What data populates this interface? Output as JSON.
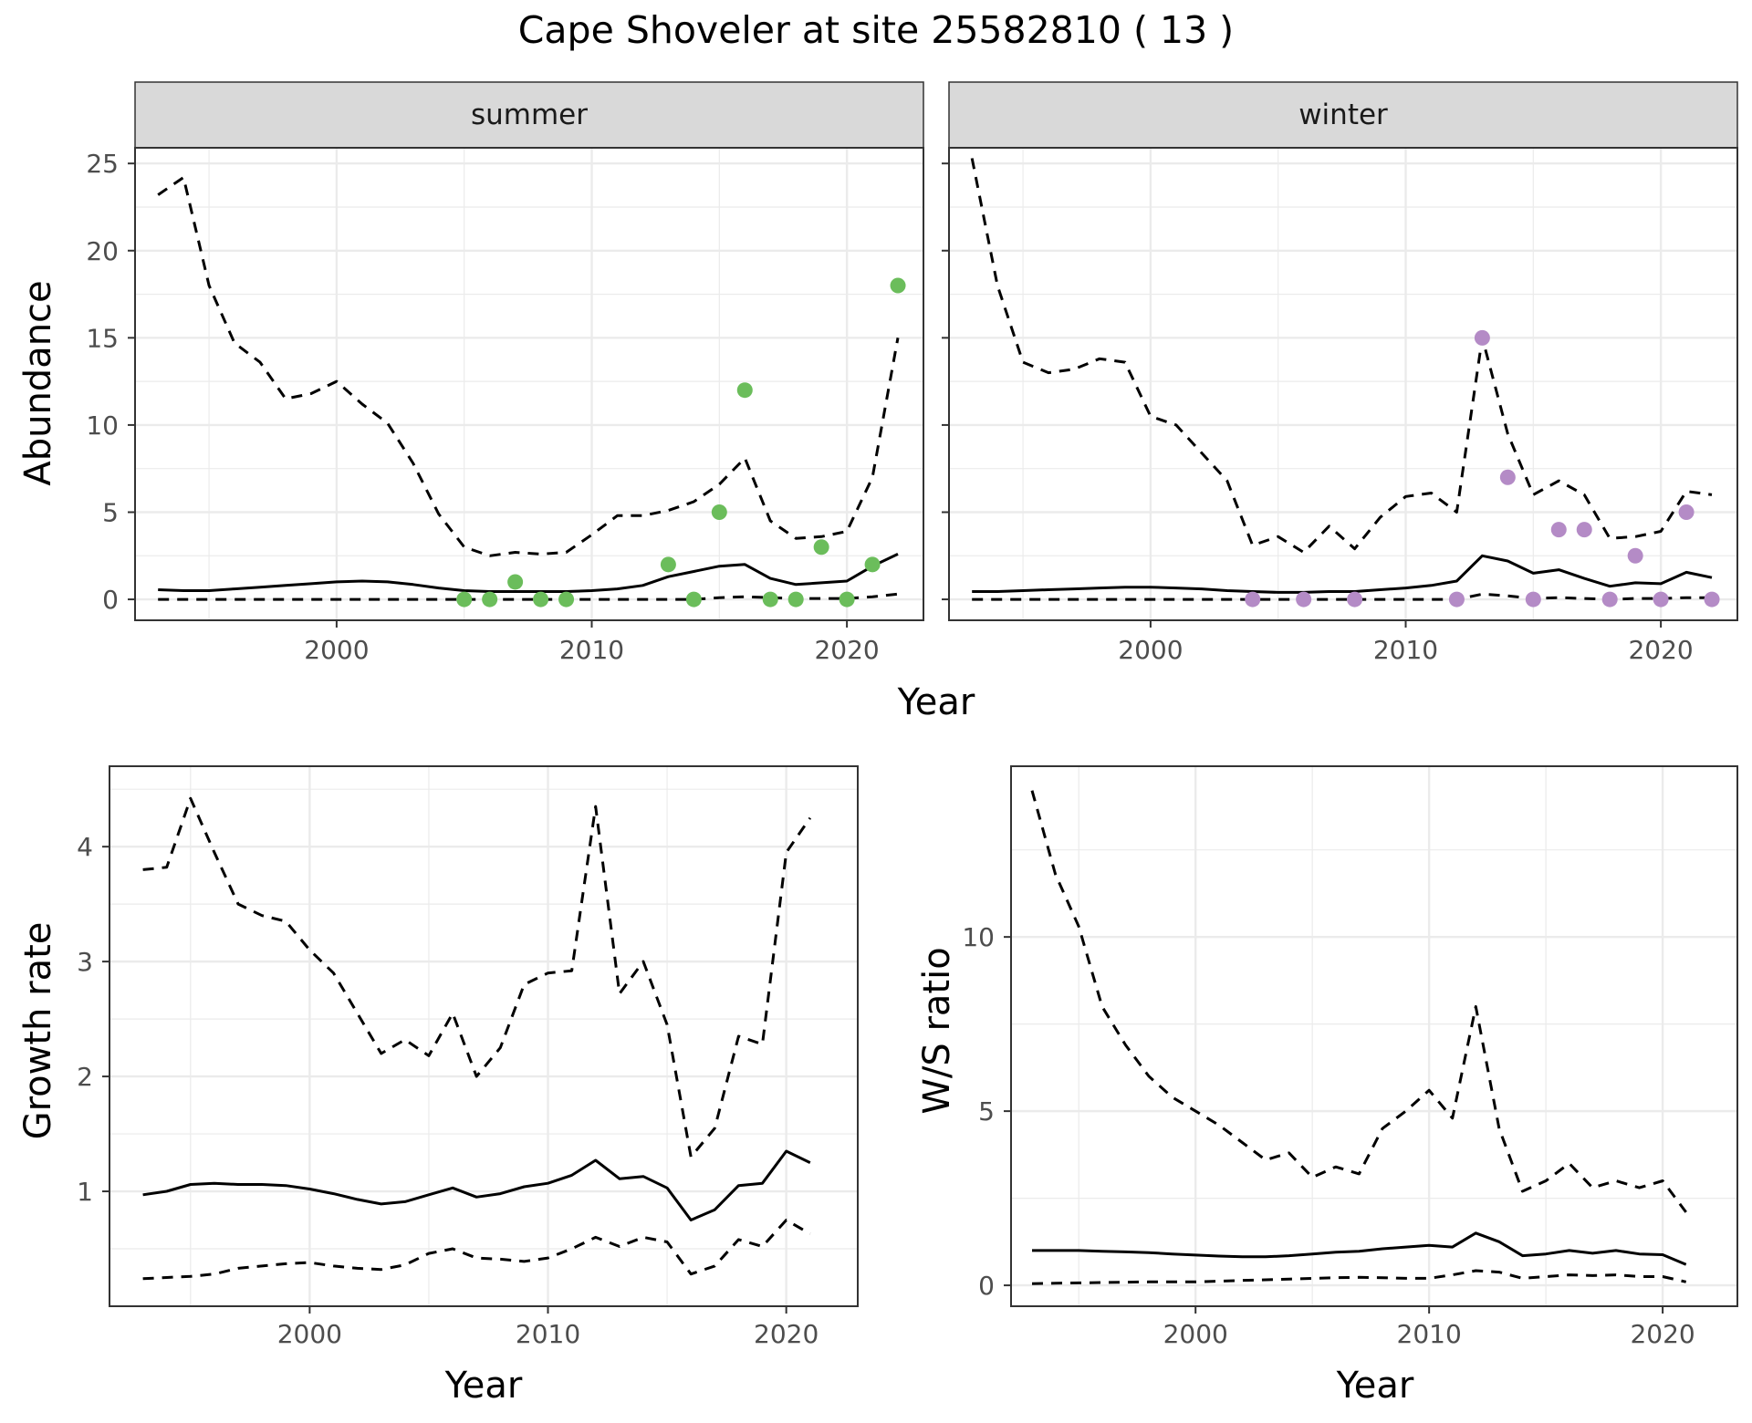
{
  "title": "Cape Shoveler at site 25582810 ( 13 )",
  "colors": {
    "summer_points": "#6bbd5b",
    "winter_points": "#b48bc6",
    "lines": "#000000",
    "grid": "#ebebeb",
    "strip_bg": "#d9d9d9"
  },
  "chart_data": [
    {
      "type": "line",
      "facet": "summer",
      "xlabel": "Year",
      "ylabel": "Abundance",
      "xlim": [
        1992.1,
        2023.0
      ],
      "ylim": [
        -1.2,
        25.9
      ],
      "xticks": [
        2000,
        2010,
        2020
      ],
      "yticks": [
        0,
        5,
        10,
        15,
        20,
        25
      ],
      "grid": true,
      "series": [
        {
          "style": "solid",
          "x": [
            1993,
            1994,
            1995,
            1996,
            1997,
            1998,
            1999,
            2000,
            2001,
            2002,
            2003,
            2004,
            2005,
            2006,
            2007,
            2008,
            2009,
            2010,
            2011,
            2012,
            2013,
            2014,
            2015,
            2016,
            2017,
            2018,
            2019,
            2020,
            2021,
            2022
          ],
          "values": [
            0.55,
            0.5,
            0.5,
            0.6,
            0.7,
            0.8,
            0.9,
            1.0,
            1.05,
            1.0,
            0.85,
            0.65,
            0.5,
            0.45,
            0.45,
            0.45,
            0.45,
            0.5,
            0.6,
            0.8,
            1.3,
            1.6,
            1.9,
            2.0,
            1.2,
            0.85,
            0.95,
            1.05,
            1.9,
            2.6
          ]
        },
        {
          "style": "dashed",
          "x": [
            1993,
            1994,
            1995,
            1996,
            1997,
            1998,
            1999,
            2000,
            2001,
            2002,
            2003,
            2004,
            2005,
            2006,
            2007,
            2008,
            2009,
            2010,
            2011,
            2012,
            2013,
            2014,
            2015,
            2016,
            2017,
            2018,
            2019,
            2020,
            2021,
            2022
          ],
          "values": [
            23.2,
            24.2,
            18.0,
            14.7,
            13.6,
            11.5,
            11.8,
            12.5,
            11.2,
            10.1,
            7.8,
            4.9,
            3.0,
            2.5,
            2.7,
            2.6,
            2.7,
            3.7,
            4.8,
            4.8,
            5.1,
            5.6,
            6.6,
            8.1,
            4.5,
            3.5,
            3.6,
            3.9,
            7.0,
            15.0
          ]
        },
        {
          "style": "dashed",
          "x": [
            1993,
            1994,
            1995,
            1996,
            1997,
            1998,
            1999,
            2000,
            2001,
            2002,
            2003,
            2004,
            2005,
            2006,
            2007,
            2008,
            2009,
            2010,
            2011,
            2012,
            2013,
            2014,
            2015,
            2016,
            2017,
            2018,
            2019,
            2020,
            2021,
            2022
          ],
          "values": [
            0,
            0,
            0,
            0,
            0,
            0,
            0,
            0,
            0,
            0,
            0,
            0,
            0,
            0,
            0,
            0,
            0,
            0,
            0,
            0,
            0,
            0,
            0.1,
            0.15,
            0.1,
            0.05,
            0.05,
            0.05,
            0.15,
            0.3
          ]
        },
        {
          "style": "points",
          "x": [
            2005,
            2006,
            2007,
            2008,
            2009,
            2013,
            2014,
            2015,
            2016,
            2017,
            2018,
            2019,
            2020,
            2021,
            2022
          ],
          "values": [
            0,
            0,
            1,
            0,
            0,
            2,
            0,
            5,
            12,
            0,
            0,
            3,
            0,
            2,
            18
          ]
        }
      ]
    },
    {
      "type": "line",
      "facet": "winter",
      "xlabel": "Year",
      "ylabel": "Abundance",
      "xlim": [
        1992.1,
        2023.0
      ],
      "ylim": [
        -1.2,
        25.9
      ],
      "xticks": [
        2000,
        2010,
        2020
      ],
      "yticks": [
        0,
        5,
        10,
        15,
        20,
        25
      ],
      "grid": true,
      "series": [
        {
          "style": "solid",
          "x": [
            1993,
            1994,
            1995,
            1996,
            1997,
            1998,
            1999,
            2000,
            2001,
            2002,
            2003,
            2004,
            2005,
            2006,
            2007,
            2008,
            2009,
            2010,
            2011,
            2012,
            2013,
            2014,
            2015,
            2016,
            2017,
            2018,
            2019,
            2020,
            2021,
            2022
          ],
          "values": [
            0.45,
            0.45,
            0.5,
            0.55,
            0.6,
            0.65,
            0.7,
            0.7,
            0.65,
            0.6,
            0.5,
            0.45,
            0.4,
            0.4,
            0.45,
            0.45,
            0.55,
            0.65,
            0.8,
            1.05,
            2.5,
            2.2,
            1.5,
            1.7,
            1.2,
            0.75,
            0.95,
            0.9,
            1.55,
            1.25
          ]
        },
        {
          "style": "dashed",
          "x": [
            1993,
            1994,
            1995,
            1996,
            1997,
            1998,
            1999,
            2000,
            2001,
            2002,
            2003,
            2004,
            2005,
            2006,
            2007,
            2008,
            2009,
            2010,
            2011,
            2012,
            2013,
            2014,
            2015,
            2016,
            2017,
            2018,
            2019,
            2020,
            2021,
            2022
          ],
          "values": [
            25.3,
            18.0,
            13.6,
            13.0,
            13.2,
            13.8,
            13.6,
            10.5,
            10.0,
            8.4,
            6.8,
            3.1,
            3.6,
            2.7,
            4.2,
            2.9,
            4.7,
            5.9,
            6.1,
            5.0,
            15.0,
            9.5,
            6.0,
            6.8,
            6.0,
            3.5,
            3.6,
            3.9,
            6.2,
            6.0
          ]
        },
        {
          "style": "dashed",
          "x": [
            1993,
            1994,
            1995,
            1996,
            1997,
            1998,
            1999,
            2000,
            2001,
            2002,
            2003,
            2004,
            2005,
            2006,
            2007,
            2008,
            2009,
            2010,
            2011,
            2012,
            2013,
            2014,
            2015,
            2016,
            2017,
            2018,
            2019,
            2020,
            2021,
            2022
          ],
          "values": [
            0,
            0,
            0,
            0,
            0,
            0,
            0,
            0,
            0,
            0,
            0,
            0,
            0,
            0,
            0,
            0,
            0,
            0,
            0,
            0,
            0.3,
            0.2,
            0.05,
            0.1,
            0.05,
            0,
            0.05,
            0.05,
            0.1,
            0.1
          ]
        },
        {
          "style": "points",
          "x": [
            2004,
            2006,
            2008,
            2012,
            2013,
            2014,
            2015,
            2016,
            2017,
            2018,
            2019,
            2020,
            2021,
            2022
          ],
          "values": [
            0,
            0,
            0,
            0,
            15,
            7,
            0,
            4,
            4,
            0,
            2.5,
            0,
            5,
            0
          ]
        }
      ]
    },
    {
      "type": "line",
      "xlabel": "Year",
      "ylabel": "Growth rate",
      "xlim": [
        1991.6,
        2023.0
      ],
      "ylim": [
        0.0,
        4.7
      ],
      "xticks": [
        2000,
        2010,
        2020
      ],
      "yticks": [
        1,
        2,
        3,
        4
      ],
      "grid": true,
      "series": [
        {
          "style": "solid",
          "x": [
            1993,
            1994,
            1995,
            1996,
            1997,
            1998,
            1999,
            2000,
            2001,
            2002,
            2003,
            2004,
            2005,
            2006,
            2007,
            2008,
            2009,
            2010,
            2011,
            2012,
            2013,
            2014,
            2015,
            2016,
            2017,
            2018,
            2019,
            2020,
            2021
          ],
          "values": [
            0.97,
            1.0,
            1.06,
            1.07,
            1.06,
            1.06,
            1.05,
            1.02,
            0.98,
            0.93,
            0.89,
            0.91,
            0.97,
            1.03,
            0.95,
            0.98,
            1.04,
            1.07,
            1.14,
            1.27,
            1.11,
            1.13,
            1.03,
            0.75,
            0.84,
            1.05,
            1.07,
            1.35,
            1.25
          ]
        },
        {
          "style": "dashed",
          "x": [
            1993,
            1994,
            1995,
            1996,
            1997,
            1998,
            1999,
            2000,
            2001,
            2002,
            2003,
            2004,
            2005,
            2006,
            2007,
            2008,
            2009,
            2010,
            2011,
            2012,
            2013,
            2014,
            2015,
            2016,
            2017,
            2018,
            2019,
            2020,
            2021
          ],
          "values": [
            3.8,
            3.82,
            4.42,
            3.95,
            3.5,
            3.4,
            3.35,
            3.1,
            2.9,
            2.55,
            2.2,
            2.32,
            2.18,
            2.55,
            2.0,
            2.25,
            2.8,
            2.9,
            2.92,
            4.35,
            2.72,
            3.0,
            2.45,
            1.3,
            1.55,
            2.35,
            2.28,
            3.95,
            4.25
          ]
        },
        {
          "style": "dashed",
          "x": [
            1993,
            1994,
            1995,
            1996,
            1997,
            1998,
            1999,
            2000,
            2001,
            2002,
            2003,
            2004,
            2005,
            2006,
            2007,
            2008,
            2009,
            2010,
            2011,
            2012,
            2013,
            2014,
            2015,
            2016,
            2017,
            2018,
            2019,
            2020,
            2021
          ],
          "values": [
            0.24,
            0.25,
            0.26,
            0.28,
            0.33,
            0.35,
            0.37,
            0.38,
            0.35,
            0.33,
            0.32,
            0.36,
            0.46,
            0.5,
            0.42,
            0.41,
            0.39,
            0.42,
            0.5,
            0.6,
            0.52,
            0.6,
            0.56,
            0.28,
            0.35,
            0.58,
            0.52,
            0.75,
            0.63
          ]
        }
      ]
    },
    {
      "type": "line",
      "xlabel": "Year",
      "ylabel": "W/S ratio",
      "xlim": [
        1992.1,
        2023.2
      ],
      "ylim": [
        -0.6,
        14.9
      ],
      "xticks": [
        2000,
        2010,
        2020
      ],
      "yticks": [
        0,
        5,
        10
      ],
      "grid": true,
      "series": [
        {
          "style": "solid",
          "x": [
            1993,
            1994,
            1995,
            1996,
            1997,
            1998,
            1999,
            2000,
            2001,
            2002,
            2003,
            2004,
            2005,
            2006,
            2007,
            2008,
            2009,
            2010,
            2011,
            2012,
            2013,
            2014,
            2015,
            2016,
            2017,
            2018,
            2019,
            2020,
            2021
          ],
          "values": [
            1.0,
            1.0,
            1.0,
            0.98,
            0.96,
            0.94,
            0.9,
            0.87,
            0.84,
            0.82,
            0.82,
            0.85,
            0.9,
            0.95,
            0.98,
            1.05,
            1.1,
            1.15,
            1.1,
            1.5,
            1.25,
            0.85,
            0.9,
            1.0,
            0.92,
            1.0,
            0.9,
            0.88,
            0.6
          ]
        },
        {
          "style": "dashed",
          "x": [
            1993,
            1994,
            1995,
            1996,
            1997,
            1998,
            1999,
            2000,
            2001,
            2002,
            2003,
            2004,
            2005,
            2006,
            2007,
            2008,
            2009,
            2010,
            2011,
            2012,
            2013,
            2014,
            2015,
            2016,
            2017,
            2018,
            2019,
            2020,
            2021
          ],
          "values": [
            14.2,
            11.8,
            10.3,
            8.0,
            6.9,
            6.0,
            5.4,
            5.0,
            4.6,
            4.1,
            3.6,
            3.8,
            3.1,
            3.4,
            3.2,
            4.5,
            5.0,
            5.6,
            4.8,
            8.0,
            4.5,
            2.7,
            3.0,
            3.5,
            2.8,
            3.0,
            2.8,
            3.0,
            2.1
          ]
        },
        {
          "style": "dashed",
          "x": [
            1993,
            1994,
            1995,
            1996,
            1997,
            1998,
            1999,
            2000,
            2001,
            2002,
            2003,
            2004,
            2005,
            2006,
            2007,
            2008,
            2009,
            2010,
            2011,
            2012,
            2013,
            2014,
            2015,
            2016,
            2017,
            2018,
            2019,
            2020,
            2021
          ],
          "values": [
            0.05,
            0.06,
            0.07,
            0.08,
            0.09,
            0.1,
            0.1,
            0.1,
            0.12,
            0.14,
            0.16,
            0.18,
            0.2,
            0.22,
            0.23,
            0.22,
            0.2,
            0.2,
            0.3,
            0.42,
            0.38,
            0.2,
            0.25,
            0.3,
            0.28,
            0.3,
            0.25,
            0.25,
            0.1
          ]
        }
      ]
    }
  ]
}
